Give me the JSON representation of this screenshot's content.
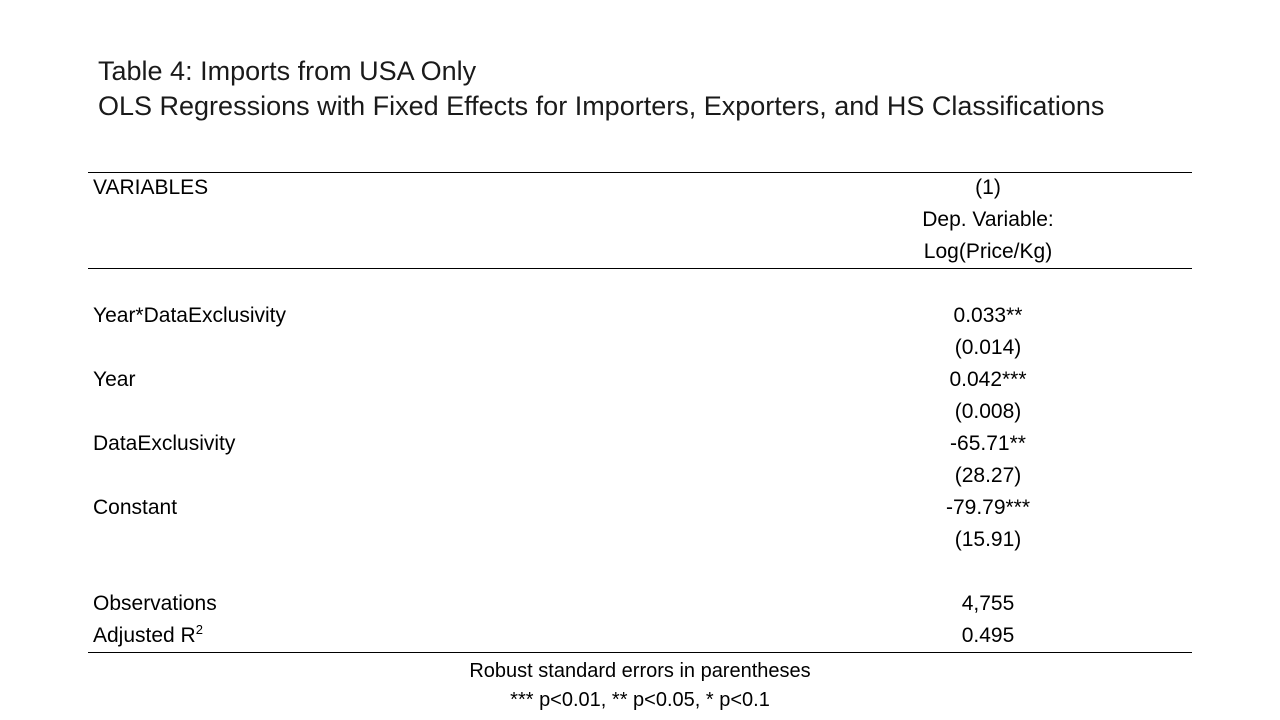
{
  "title": {
    "line1_bold": "Table 4",
    "line1_rest": ": Imports from USA Only",
    "line2": "OLS Regressions with Fixed Effects for Importers, Exporters, and HS Classifications"
  },
  "table": {
    "header": {
      "variables_label": "VARIABLES",
      "column_number": "(1)",
      "dep_var_label": "Dep. Variable:",
      "dep_var_name": "Log(Price/Kg)"
    },
    "rows": [
      {
        "label": "Year*DataExclusivity",
        "coef": "0.033**",
        "se": "(0.014)"
      },
      {
        "label": "Year",
        "coef": "0.042***",
        "se": "(0.008)"
      },
      {
        "label": "DataExclusivity",
        "coef": "-65.71**",
        "se": "(28.27)"
      },
      {
        "label": "Constant",
        "coef": "-79.79***",
        "se": "(15.91)"
      }
    ],
    "stats": {
      "observations_label": "Observations",
      "observations_value": "4,755",
      "adj_r2_label": "Adjusted R",
      "adj_r2_sup": "2",
      "adj_r2_value": "0.495"
    }
  },
  "footnotes": {
    "line1": "Robust standard errors in parentheses",
    "line2": "*** p<0.01, ** p<0.05, * p<0.1"
  }
}
